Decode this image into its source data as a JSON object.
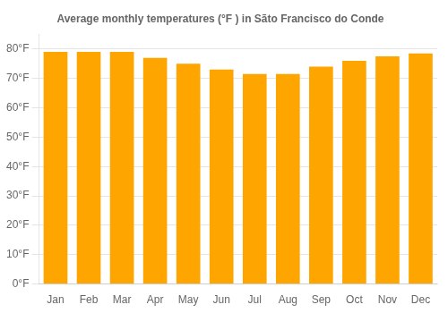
{
  "chart_data": {
    "type": "bar",
    "title": "Average monthly temperatures (°F ) in Sãto Francisco do Conde",
    "categories": [
      "Jan",
      "Feb",
      "Mar",
      "Apr",
      "May",
      "Jun",
      "Jul",
      "Aug",
      "Sep",
      "Oct",
      "Nov",
      "Dec"
    ],
    "values": [
      79.0,
      79.0,
      79.0,
      77.0,
      75.0,
      73.0,
      71.5,
      71.5,
      74.0,
      76.0,
      77.5,
      78.5
    ],
    "color": "#FFA500",
    "ylim": [
      0,
      85
    ],
    "yticks": [
      {
        "value": 0,
        "label": "0°F"
      },
      {
        "value": 10,
        "label": "10°F"
      },
      {
        "value": 20,
        "label": "20°F"
      },
      {
        "value": 30,
        "label": "30°F"
      },
      {
        "value": 40,
        "label": "40°F"
      },
      {
        "value": 50,
        "label": "50°F"
      },
      {
        "value": 60,
        "label": "60°F"
      },
      {
        "value": 70,
        "label": "70°F"
      },
      {
        "value": 80,
        "label": "80°F"
      }
    ],
    "grid": "y"
  }
}
